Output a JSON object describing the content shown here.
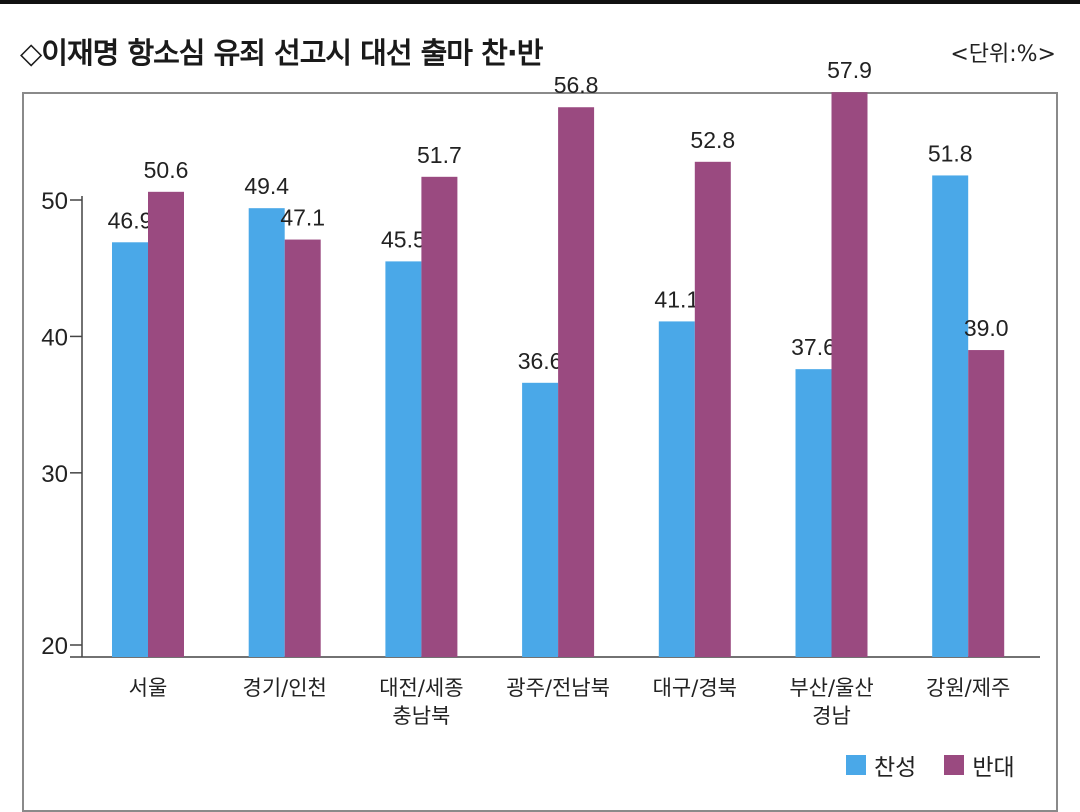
{
  "header": {
    "title": "◇이재명 항소심 유죄 선고시 대선 출마 찬·반",
    "unit": "<단위:%>"
  },
  "colors": {
    "favor": "#4aa8e8",
    "oppose": "#9a4a80"
  },
  "chart_data": {
    "type": "bar",
    "categories": [
      "서울",
      "경기/인천",
      "대전/세종\n충남북",
      "광주/전남북",
      "대구/경북",
      "부산/울산\n경남",
      "강원/제주"
    ],
    "series": [
      {
        "name": "찬성",
        "values": [
          46.9,
          49.4,
          45.5,
          36.6,
          41.1,
          37.6,
          51.8
        ]
      },
      {
        "name": "반대",
        "values": [
          50.6,
          47.1,
          51.7,
          56.8,
          52.8,
          57.9,
          39.0
        ]
      }
    ],
    "yticks": [
      20,
      30,
      40,
      50
    ],
    "ylim": [
      16.5,
      58
    ],
    "grid": false,
    "legend_position": "bottom-right"
  }
}
